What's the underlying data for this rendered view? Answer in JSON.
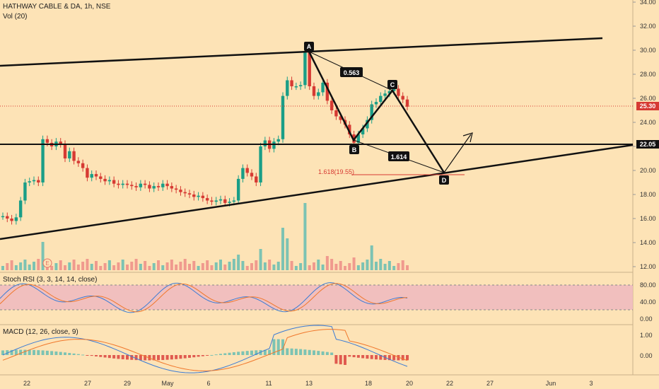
{
  "header": {
    "symbol_line": "HATHWAY CABLE & DA, 1h, NSE",
    "volume_label": "Vol (20)"
  },
  "colors": {
    "background": "#fde3b6",
    "up_candle": "#1a9e87",
    "down_candle": "#d63a33",
    "rsi_band": "#efb8c0",
    "last_price_tag": "#d63a33",
    "level_tag": "#111111"
  },
  "price_axis": {
    "ticks": [
      "34.00",
      "32.00",
      "30.00",
      "28.00",
      "26.00",
      "24.00",
      "22.00",
      "20.00",
      "18.00",
      "16.00",
      "14.00",
      "12.00"
    ],
    "ylim": [
      12,
      34
    ],
    "last_price": "25.30",
    "level_price": "22.05"
  },
  "time_axis": {
    "labels": [
      "22",
      "27",
      "29",
      "May",
      "6",
      "11",
      "13",
      "18",
      "20",
      "22",
      "27",
      "Jun",
      "3"
    ]
  },
  "pattern": {
    "points": [
      {
        "label": "A",
        "date": "13",
        "price": 29.8
      },
      {
        "label": "B",
        "date": "16",
        "price": 22.3
      },
      {
        "label": "C",
        "date": "19",
        "price": 26.5
      },
      {
        "label": "D",
        "date": "22",
        "price": 19.8
      }
    ],
    "ratios": [
      "0.563",
      "1.614"
    ],
    "projection_label": "1.618(19.55)",
    "event_marker": "E"
  },
  "stoch_rsi": {
    "label": "Stoch RSI (3, 3, 14, 14, close)",
    "ticks": [
      "80.00",
      "40.00",
      "0.00"
    ],
    "band": [
      20,
      80
    ]
  },
  "macd": {
    "label": "MACD (12, 26, close, 9)",
    "ticks": [
      "1.00",
      "0.00"
    ]
  },
  "chart_data": {
    "type": "candlestick",
    "timeframe": "1h",
    "ylim": [
      12,
      34
    ],
    "x_labels": [
      "22",
      "27",
      "29",
      "May",
      "6",
      "11",
      "13",
      "18",
      "20",
      "22",
      "27",
      "Jun",
      "3"
    ],
    "last_price": 25.3,
    "horizontal_level": 22.05,
    "trendlines": [
      {
        "name": "upper channel",
        "from": {
          "x": "start",
          "y": 28.6
        },
        "to": {
          "x": "27",
          "y": 30.9
        }
      },
      {
        "name": "lower trendline",
        "from": {
          "x": "start",
          "y": 14.2
        },
        "to": {
          "x": "end",
          "y": 22.1
        }
      }
    ],
    "harmonic_pattern": {
      "A": 29.8,
      "B": 22.3,
      "C": 26.5,
      "D": 19.8,
      "ratios": [
        0.563,
        1.614
      ],
      "projection": "1.618(19.55)"
    },
    "candles": [
      16.2,
      16.0,
      15.8,
      16.1,
      17.5,
      19.0,
      19.1,
      19.2,
      19.0,
      22.6,
      22.3,
      22.0,
      22.4,
      22.2,
      21.0,
      21.6,
      20.8,
      20.6,
      20.2,
      19.4,
      19.7,
      19.5,
      19.3,
      19.1,
      19.2,
      18.9,
      18.8,
      18.9,
      18.8,
      18.7,
      18.6,
      18.9,
      18.8,
      18.5,
      18.7,
      18.6,
      18.9,
      18.7,
      18.5,
      18.4,
      18.2,
      18.1,
      18.0,
      17.8,
      17.9,
      17.7,
      17.5,
      17.4,
      17.5,
      17.6,
      17.3,
      17.4,
      17.5,
      19.3,
      20.2,
      19.8,
      19.5,
      19.0,
      22.0,
      22.5,
      21.8,
      22.4,
      22.6,
      26.2,
      27.5,
      27.0,
      27.0,
      27.1,
      29.8,
      27.0,
      26.2,
      26.5,
      27.3,
      25.8,
      25.0,
      24.5,
      24.2,
      23.8,
      23.0,
      22.3,
      23.0,
      23.5,
      24.2,
      25.5,
      25.7,
      26.2,
      26.4,
      26.6,
      26.8,
      26.2,
      25.9,
      25.3
    ],
    "stoch_rsi": {
      "band": [
        20,
        80
      ]
    },
    "macd": {
      "zero_line": 0
    }
  }
}
